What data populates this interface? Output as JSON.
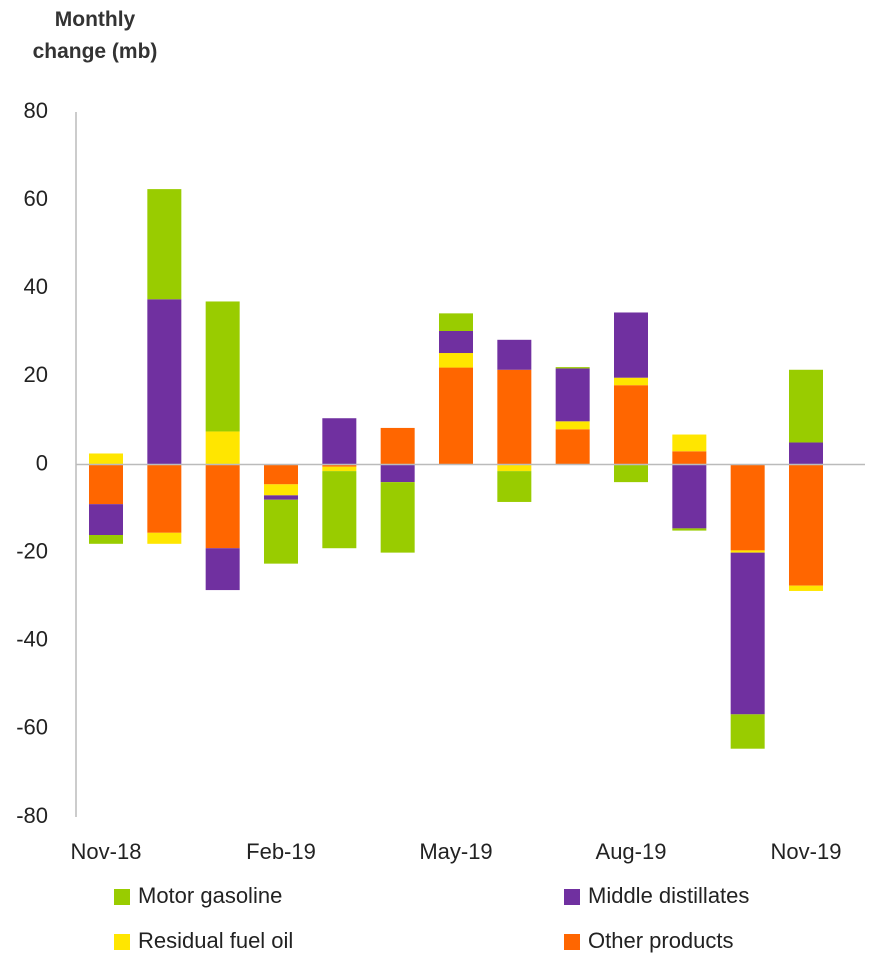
{
  "chart_data": {
    "type": "stacked_bar",
    "title": "Monthly change (mb)",
    "categories": [
      "Nov-18",
      null,
      null,
      "Feb-19",
      null,
      null,
      "May-19",
      null,
      null,
      "Aug-19",
      null,
      null,
      "Nov-19"
    ],
    "series": [
      {
        "name": "Motor gasoline",
        "color": "#99cc00",
        "values": [
          -2,
          25,
          29.5,
          -14.5,
          -17.5,
          -16,
          4,
          -7,
          0.3,
          -4,
          -0.5,
          -7.8,
          16.5
        ]
      },
      {
        "name": "Middle distillates",
        "color": "#7030a0",
        "values": [
          -7,
          37.5,
          -9.5,
          -1,
          10.5,
          -4,
          5,
          6.8,
          12,
          14.8,
          -14.5,
          -36.7,
          5
        ]
      },
      {
        "name": "Residual fuel oil",
        "color": "#ffe600",
        "values": [
          2.5,
          -2.5,
          7.5,
          -2.5,
          -1,
          0,
          3.3,
          -1.5,
          1.8,
          1.7,
          3.8,
          -0.5,
          -1.2
        ]
      },
      {
        "name": "Other products",
        "color": "#ff6600",
        "values": [
          -9,
          -15.5,
          -19,
          -4.5,
          -0.5,
          8.3,
          22,
          21.5,
          8,
          18,
          3,
          -19.5,
          -27.5
        ]
      }
    ],
    "ylim": [
      -80,
      80
    ],
    "yticks": [
      -80,
      -60,
      -40,
      -20,
      0,
      20,
      40,
      60,
      80
    ],
    "grid": false
  }
}
